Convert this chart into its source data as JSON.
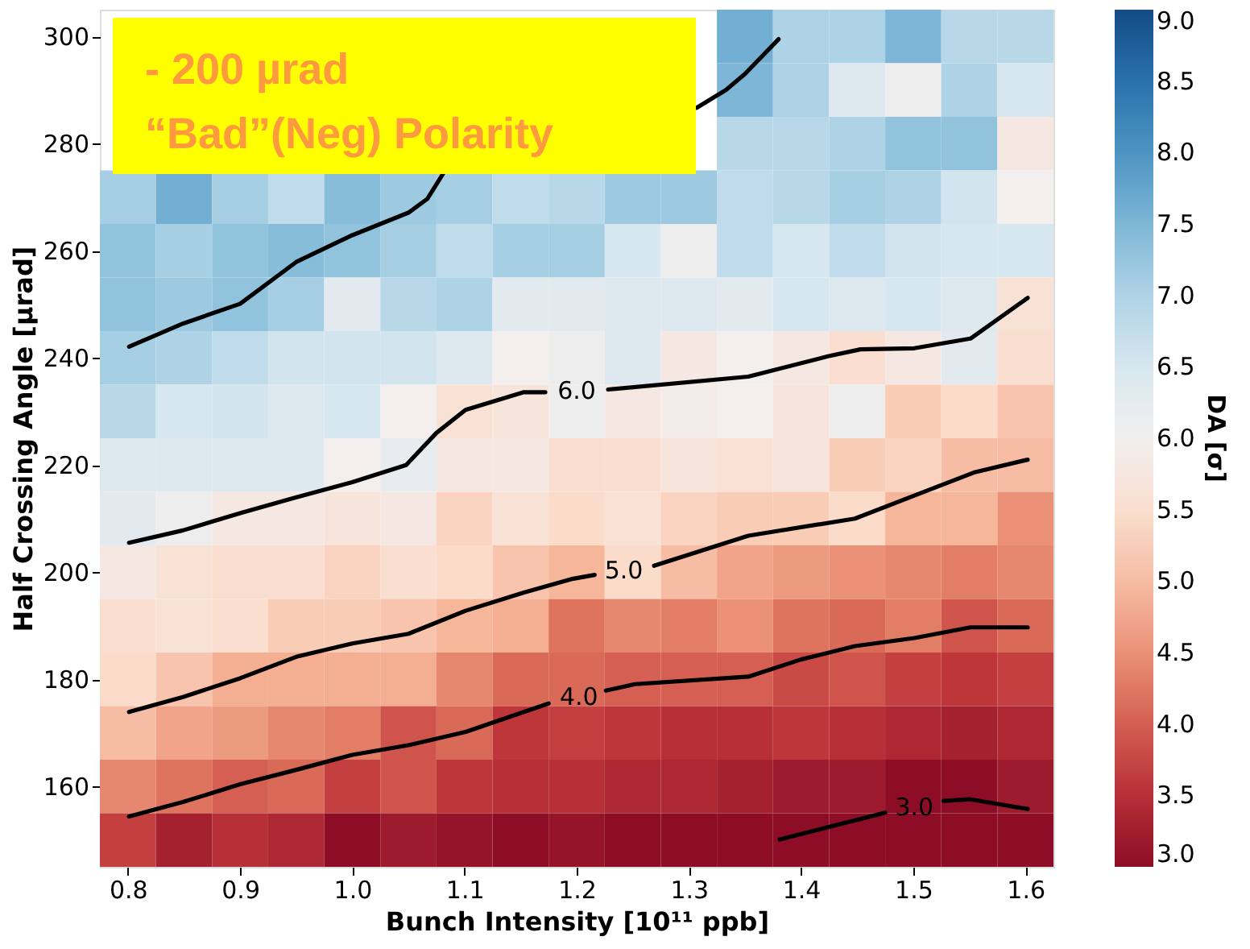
{
  "chart_data": {
    "type": "heatmap",
    "xlabel": "Bunch Intensity [10¹¹ ppb]",
    "ylabel": "Half Crossing Angle [µrad]",
    "clabel": "DA [σ]",
    "cells": [
      [
        null,
        null,
        null,
        null,
        null,
        null,
        null,
        null,
        null,
        null,
        null,
        7.6,
        7.0,
        7.0,
        7.5,
        6.9,
        6.9
      ],
      [
        null,
        null,
        null,
        null,
        null,
        null,
        null,
        null,
        null,
        null,
        null,
        7.5,
        7.0,
        6.4,
        6.1,
        7.0,
        6.5
      ],
      [
        null,
        null,
        null,
        null,
        null,
        null,
        null,
        null,
        null,
        null,
        null,
        6.9,
        6.9,
        7.0,
        7.3,
        7.3,
        5.8
      ],
      [
        7.1,
        7.6,
        7.1,
        6.8,
        7.4,
        7.2,
        7.1,
        6.8,
        6.9,
        7.2,
        7.2,
        6.8,
        6.9,
        7.1,
        7.0,
        6.6,
        6.0
      ],
      [
        7.3,
        7.1,
        7.3,
        7.4,
        7.3,
        7.1,
        6.8,
        7.1,
        7.1,
        6.5,
        6.1,
        6.8,
        6.5,
        6.8,
        6.6,
        6.5,
        6.5
      ],
      [
        7.3,
        7.2,
        7.3,
        7.1,
        6.3,
        6.9,
        7.0,
        6.3,
        6.3,
        6.4,
        6.4,
        6.3,
        6.5,
        6.4,
        6.5,
        6.4,
        5.6
      ],
      [
        7.1,
        7.0,
        6.8,
        6.6,
        6.6,
        6.6,
        6.4,
        6.0,
        6.1,
        6.4,
        5.8,
        6.0,
        5.8,
        5.5,
        5.8,
        6.3,
        5.5
      ],
      [
        6.9,
        6.5,
        6.6,
        6.4,
        6.5,
        6.0,
        5.6,
        5.7,
        6.1,
        5.8,
        5.9,
        6.0,
        5.7,
        6.1,
        5.2,
        5.4,
        5.1
      ],
      [
        6.4,
        6.4,
        6.4,
        6.4,
        6.0,
        6.2,
        5.8,
        5.8,
        5.5,
        5.5,
        5.7,
        5.6,
        5.7,
        5.2,
        5.3,
        5.0,
        5.0
      ],
      [
        6.3,
        6.1,
        5.8,
        5.8,
        5.7,
        5.8,
        5.3,
        5.6,
        5.4,
        5.6,
        5.3,
        5.2,
        5.2,
        5.4,
        4.9,
        4.9,
        4.5
      ],
      [
        5.8,
        5.6,
        5.5,
        5.5,
        5.3,
        5.5,
        5.4,
        5.1,
        4.9,
        5.4,
        5.0,
        4.7,
        4.6,
        4.5,
        4.4,
        4.3,
        4.4
      ],
      [
        5.5,
        5.6,
        5.5,
        5.2,
        5.2,
        5.1,
        4.9,
        4.8,
        4.2,
        4.4,
        4.3,
        4.5,
        4.2,
        4.1,
        4.3,
        3.9,
        4.1
      ],
      [
        5.4,
        5.1,
        4.8,
        4.8,
        4.8,
        4.8,
        4.4,
        4.1,
        4.1,
        4.0,
        4.0,
        4.0,
        3.8,
        3.9,
        3.7,
        3.6,
        3.7
      ],
      [
        5.0,
        4.7,
        4.6,
        4.4,
        4.3,
        3.9,
        4.1,
        3.6,
        3.7,
        3.6,
        3.5,
        3.5,
        3.6,
        3.5,
        3.4,
        3.3,
        3.4
      ],
      [
        4.4,
        4.2,
        4.0,
        4.1,
        3.7,
        3.9,
        3.6,
        3.5,
        3.5,
        3.4,
        3.4,
        3.3,
        3.2,
        3.2,
        3.0,
        3.0,
        3.2
      ],
      [
        3.7,
        3.3,
        3.5,
        3.4,
        3.0,
        3.2,
        3.1,
        3.0,
        3.1,
        3.0,
        3.0,
        3.0,
        3.0,
        3.0,
        3.0,
        3.0,
        3.0
      ]
    ],
    "clim": [
      3,
      9
    ],
    "cticks": [
      {
        "value": 3,
        "label": "3.0"
      },
      {
        "value": 3.5,
        "label": "3.5"
      },
      {
        "value": 4,
        "label": "4.0"
      },
      {
        "value": 4.5,
        "label": "4.5"
      },
      {
        "value": 5,
        "label": "5.0"
      },
      {
        "value": 5.5,
        "label": "5.5"
      },
      {
        "value": 6,
        "label": "6.0"
      },
      {
        "value": 6.5,
        "label": "6.5"
      },
      {
        "value": 7,
        "label": "7.0"
      },
      {
        "value": 7.5,
        "label": "7.5"
      },
      {
        "value": 8,
        "label": "8.0"
      },
      {
        "value": 8.5,
        "label": "8.5"
      },
      {
        "value": 9,
        "label": "9.0"
      }
    ],
    "xlim": [
      0.775,
      1.625
    ],
    "xticks": [
      0.8,
      0.9,
      {
        "value": 1,
        "label": "1.0"
      },
      1.1,
      1.2,
      1.3,
      1.4,
      1.5,
      1.6
    ],
    "ylim": [
      145,
      305
    ],
    "yticks": [
      160,
      180,
      200,
      220,
      240,
      260,
      280,
      300
    ],
    "series": [
      {
        "type": "line",
        "color": "#000000",
        "x": [
          0.801,
          0.849,
          0.9,
          0.95,
          1.0,
          1.05,
          1.067,
          1.081,
          1.2,
          1.307,
          1.333,
          1.35,
          1.38
        ],
        "values": [
          242.1,
          246.4,
          250.1,
          257.9,
          262.9,
          267.1,
          269.7,
          274.4,
          null,
          286.7,
          290,
          293,
          299.5
        ]
      },
      {
        "type": "line",
        "name": "6.0",
        "color": "#000000",
        "x": [
          0.801,
          0.849,
          0.9,
          0.947,
          1.0,
          1.048,
          1.075,
          1.101,
          1.153,
          1.172,
          1.2,
          1.228,
          1.353,
          1.424,
          1.453,
          1.501,
          1.551,
          1.602
        ],
        "values": [
          205.5,
          207.8,
          211,
          213.8,
          216.8,
          220,
          226,
          230.3,
          233.6,
          233.6,
          null,
          234.1,
          236.5,
          240.3,
          241.6,
          241.8,
          243.6,
          251.2
        ]
      },
      {
        "type": "line",
        "name": "5.0",
        "color": "#000000",
        "x": [
          0.801,
          0.849,
          0.9,
          0.95,
          1.0,
          1.05,
          1.101,
          1.153,
          1.195,
          1.216,
          1.242,
          1.269,
          1.353,
          1.448,
          1.501,
          1.554,
          1.602
        ],
        "values": [
          173.9,
          176.7,
          180.2,
          184.2,
          186.7,
          188.5,
          192.8,
          196.2,
          198.7,
          199.5,
          null,
          201.2,
          206.8,
          210,
          214.3,
          218.6,
          221
        ]
      },
      {
        "type": "line",
        "name": "4.0",
        "color": "#000000",
        "x": [
          0.801,
          0.849,
          0.9,
          0.95,
          1.0,
          1.05,
          1.101,
          1.175,
          1.202,
          1.226,
          1.252,
          1.353,
          1.4,
          1.448,
          1.501,
          1.551,
          1.602
        ],
        "values": [
          154.4,
          157.1,
          160.4,
          163.1,
          165.9,
          167.7,
          170.2,
          175.5,
          null,
          177.9,
          179.1,
          180.5,
          183.7,
          186.2,
          187.7,
          189.7,
          189.7
        ]
      },
      {
        "type": "line",
        "name": "3.0",
        "color": "#000000",
        "x": [
          1.381,
          1.424,
          1.475,
          1.501,
          1.527,
          1.551,
          1.602
        ],
        "values": [
          150.1,
          152.4,
          155.1,
          null,
          157.3,
          157.6,
          155.8
        ]
      }
    ],
    "annotations": [
      "- 200 µrad",
      "“Bad”(Neg) Polarity"
    ],
    "grid": false
  }
}
